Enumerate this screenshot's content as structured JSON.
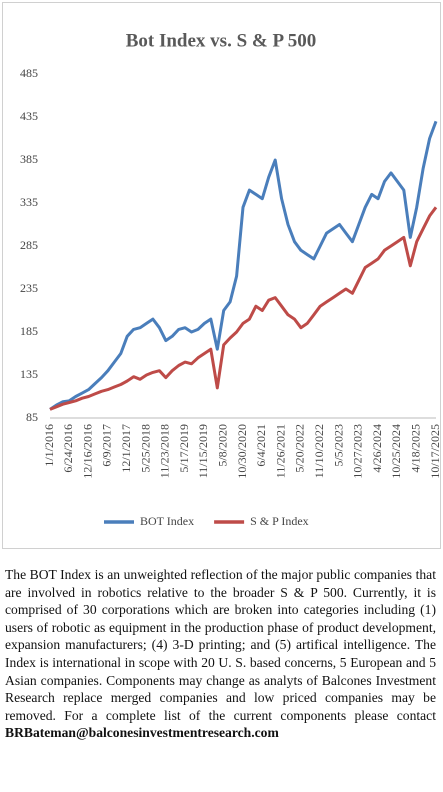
{
  "chart_data": {
    "type": "line",
    "title": "Bot Index vs. S & P 500",
    "categories": [
      "1/1/2016",
      null,
      null,
      "6/24/2016",
      null,
      null,
      "12/16/2016",
      null,
      null,
      "6/9/2017",
      null,
      null,
      "12/1/2017",
      null,
      null,
      "5/25/2018",
      null,
      null,
      "11/23/2018",
      null,
      null,
      "5/17/2019",
      null,
      null,
      "11/15/2019",
      null,
      null,
      "5/8/2020",
      null,
      null,
      "10/30/2020",
      null,
      null,
      "6/4/2021",
      null,
      null,
      "11/26/2021",
      null,
      null,
      "5/20/2022",
      null,
      null,
      "11/10/2022",
      null,
      null,
      "5/5/2023",
      null,
      null,
      "10/27/2023",
      null,
      null,
      "4/26/2024",
      null,
      null,
      "10/25/2024",
      null,
      null,
      "4/18/2025",
      null,
      null,
      "10/17/2025"
    ],
    "series": [
      {
        "name": "BOT Index",
        "color": "#4a7ebb",
        "values": [
          95,
          100,
          104,
          105,
          110,
          114,
          118,
          125,
          132,
          140,
          150,
          160,
          180,
          188,
          190,
          195,
          200,
          190,
          175,
          180,
          188,
          190,
          185,
          188,
          195,
          200,
          165,
          210,
          220,
          250,
          330,
          350,
          345,
          340,
          365,
          385,
          340,
          310,
          290,
          280,
          275,
          270,
          285,
          300,
          305,
          310,
          300,
          290,
          310,
          330,
          345,
          340,
          360,
          370,
          360,
          350,
          295,
          330,
          375,
          410,
          430
        ]
      },
      {
        "name": "S & P Index",
        "color": "#be4b48",
        "values": [
          95,
          98,
          101,
          103,
          105,
          108,
          110,
          113,
          116,
          118,
          121,
          124,
          128,
          133,
          130,
          135,
          138,
          140,
          132,
          140,
          146,
          150,
          148,
          155,
          160,
          165,
          120,
          170,
          178,
          185,
          195,
          200,
          215,
          210,
          222,
          225,
          215,
          205,
          200,
          190,
          195,
          205,
          215,
          220,
          225,
          230,
          235,
          230,
          245,
          260,
          265,
          270,
          280,
          285,
          290,
          295,
          262,
          290,
          305,
          320,
          330
        ]
      }
    ],
    "ylim": [
      85,
      485
    ],
    "yticks": [
      85,
      135,
      185,
      235,
      285,
      335,
      385,
      435,
      485
    ],
    "grid": false,
    "legend": "bottom"
  },
  "note": "The BOT Index is an unweighted reflection of the major public companies that are involved in robotics relative to the broader S & P 500. Currently, it is comprised of 30 corporations which are broken into categories including (1) users of robotic as equipment in the production phase of product development, expansion manufacturers; (4) 3-D printing; and (5) artifical intelligence. The Index is international in scope with 20 U. S. based concerns, 5 European and 5 Asian companies. Components may change as analyts of Balcones Investment Research replace merged companies and low priced companies may be removed. For a complete list of the current components please contact",
  "contact": "BRBateman@balconesinvestmentresearch.com"
}
